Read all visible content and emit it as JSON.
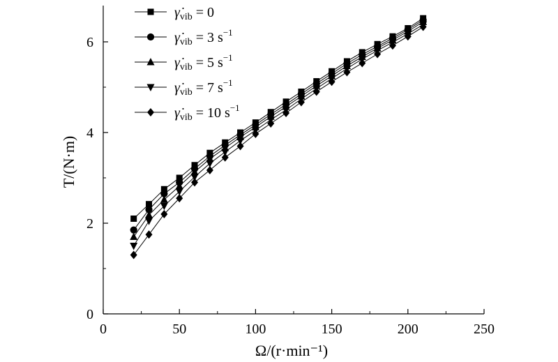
{
  "chart_data": {
    "type": "line",
    "xlabel": "Ω/(r·min⁻¹)",
    "ylabel": "T/(N·m)",
    "xlim": [
      0,
      250
    ],
    "ylim": [
      0,
      6.8
    ],
    "xticks": [
      0,
      50,
      100,
      150,
      200,
      250
    ],
    "yticks": [
      0,
      2,
      4,
      6
    ],
    "grid": false,
    "legend_position": "top-left",
    "x": [
      20,
      30,
      40,
      50,
      60,
      70,
      80,
      90,
      100,
      110,
      120,
      130,
      140,
      150,
      160,
      170,
      180,
      190,
      200,
      210
    ],
    "series": [
      {
        "name": "γ̇vib = 0",
        "label_rate": "0",
        "marker": "square",
        "values": [
          2.1,
          2.42,
          2.75,
          3.0,
          3.28,
          3.55,
          3.78,
          4.0,
          4.22,
          4.45,
          4.68,
          4.9,
          5.13,
          5.35,
          5.57,
          5.77,
          5.95,
          6.12,
          6.3,
          6.52
        ]
      },
      {
        "name": "γ̇vib = 3 s−1",
        "label_rate": "3 s",
        "marker": "circle",
        "values": [
          1.85,
          2.3,
          2.65,
          2.9,
          3.2,
          3.48,
          3.72,
          3.95,
          4.17,
          4.4,
          4.62,
          4.85,
          5.08,
          5.3,
          5.52,
          5.72,
          5.9,
          6.08,
          6.27,
          6.48
        ]
      },
      {
        "name": "γ̇vib = 5 s−1",
        "label_rate": "5 s",
        "marker": "triangle-up",
        "values": [
          1.7,
          2.18,
          2.52,
          2.82,
          3.13,
          3.42,
          3.66,
          3.9,
          4.12,
          4.35,
          4.57,
          4.8,
          5.03,
          5.25,
          5.47,
          5.67,
          5.86,
          6.04,
          6.23,
          6.44
        ]
      },
      {
        "name": "γ̇vib = 7 s−1",
        "label_rate": "7 s",
        "marker": "triangle-down",
        "values": [
          1.5,
          2.05,
          2.38,
          2.7,
          3.02,
          3.32,
          3.57,
          3.82,
          4.05,
          4.28,
          4.5,
          4.74,
          4.97,
          5.19,
          5.41,
          5.62,
          5.81,
          5.99,
          6.18,
          6.38
        ]
      },
      {
        "name": "γ̇vib = 10 s−1",
        "label_rate": "10 s",
        "marker": "diamond",
        "values": [
          1.3,
          1.75,
          2.2,
          2.55,
          2.9,
          3.17,
          3.45,
          3.7,
          3.97,
          4.2,
          4.43,
          4.67,
          4.9,
          5.12,
          5.33,
          5.53,
          5.73,
          5.92,
          6.12,
          6.33
        ]
      }
    ]
  }
}
